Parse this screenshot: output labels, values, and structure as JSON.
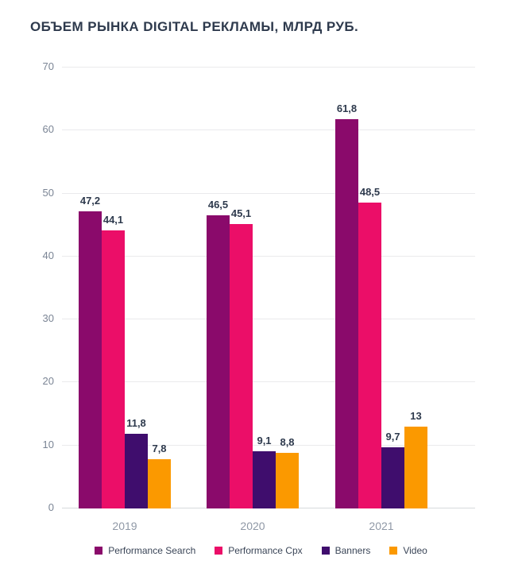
{
  "chart_data": {
    "type": "bar",
    "title": "ОБЪЕМ РЫНКА DIGITAL РЕКЛАМЫ, МЛРД РУБ.",
    "categories": [
      "2019",
      "2020",
      "2021"
    ],
    "series": [
      {
        "name": "Performance Search",
        "color": "#8a0a6b",
        "values": [
          47.2,
          46.5,
          61.8
        ],
        "labels": [
          "47,2",
          "46,5",
          "61,8"
        ]
      },
      {
        "name": "Performance Cpx",
        "color": "#eb0e68",
        "values": [
          44.1,
          45.1,
          48.5
        ],
        "labels": [
          "44,1",
          "45,1",
          "48,5"
        ]
      },
      {
        "name": "Banners",
        "color": "#3f0d6d",
        "values": [
          11.8,
          9.1,
          9.7
        ],
        "labels": [
          "11,8",
          "9,1",
          "9,7"
        ]
      },
      {
        "name": "Video",
        "color": "#fb9900",
        "values": [
          7.8,
          8.8,
          13
        ],
        "labels": [
          "7,8",
          "8,8",
          "13"
        ]
      }
    ],
    "xlabel": "",
    "ylabel": "",
    "ylim": [
      0,
      70
    ],
    "yticks": [
      0,
      10,
      20,
      30,
      40,
      50,
      60,
      70
    ],
    "grid": true,
    "legend_position": "bottom"
  }
}
